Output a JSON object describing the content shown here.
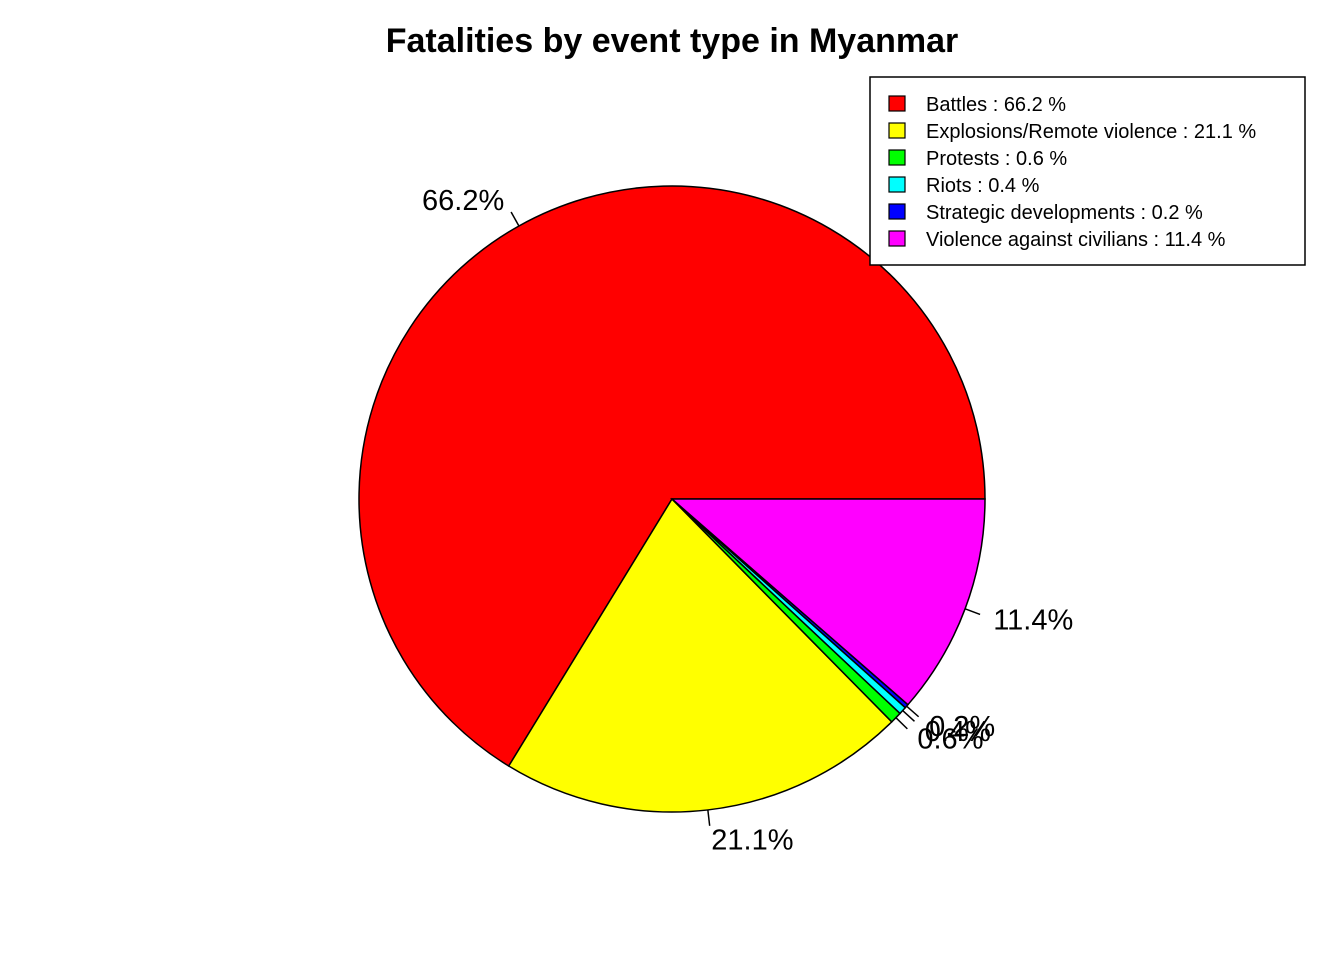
{
  "chart_data": {
    "type": "pie",
    "title": "Fatalities by event type in Myanmar",
    "categories": [
      "Battles",
      "Explosions/Remote violence",
      "Protests",
      "Riots",
      "Strategic developments",
      "Violence against civilians"
    ],
    "values": [
      66.2,
      21.1,
      0.6,
      0.4,
      0.2,
      11.4
    ],
    "slice_labels": [
      "66.2%",
      "21.1%",
      "0.6%",
      "0.4%",
      "0.2%",
      "11.4%"
    ],
    "colors": [
      "#ff0000",
      "#ffff00",
      "#00ff00",
      "#00ffff",
      "#0000ff",
      "#ff00ff"
    ],
    "legend": {
      "placement": "top-right",
      "entries": [
        "Battles : 66.2 %",
        "Explosions/Remote violence : 21.1 %",
        "Protests : 0.6 %",
        "Riots : 0.4 %",
        "Strategic developments : 0.2 %",
        "Violence against civilians : 11.4 %"
      ]
    }
  }
}
